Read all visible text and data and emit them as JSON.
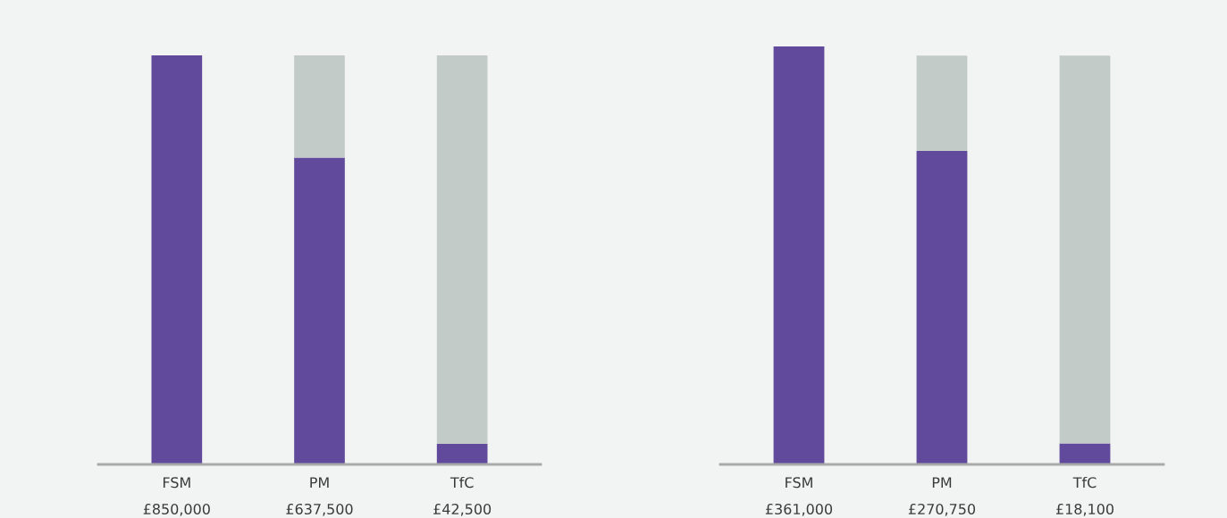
{
  "chart_data": [
    {
      "type": "bar",
      "stacked": true,
      "categories": [
        "FSM",
        "PM",
        "TfC"
      ],
      "series": [
        {
          "color": "#614a9b",
          "values": [
            850000,
            637500,
            42500
          ],
          "value_labels": [
            "£850,000",
            "£637,500",
            "£42,500"
          ]
        },
        {
          "color": "#c3cbc8",
          "values": [
            null,
            212500,
            807500
          ]
        }
      ],
      "grid": false,
      "legend": false,
      "tick_labels": "x"
    },
    {
      "type": "bar",
      "stacked": true,
      "categories": [
        "FSM",
        "PM",
        "TfC"
      ],
      "series": [
        {
          "color": "#614a9b",
          "values": [
            361000,
            270750,
            18100
          ],
          "value_labels": [
            "£361,000",
            "£270,750",
            "£18,100"
          ]
        },
        {
          "color": "#c3cbc8",
          "values": [
            null,
            82250,
            334900
          ]
        }
      ],
      "grid": false,
      "legend": false,
      "tick_labels": "x"
    }
  ]
}
